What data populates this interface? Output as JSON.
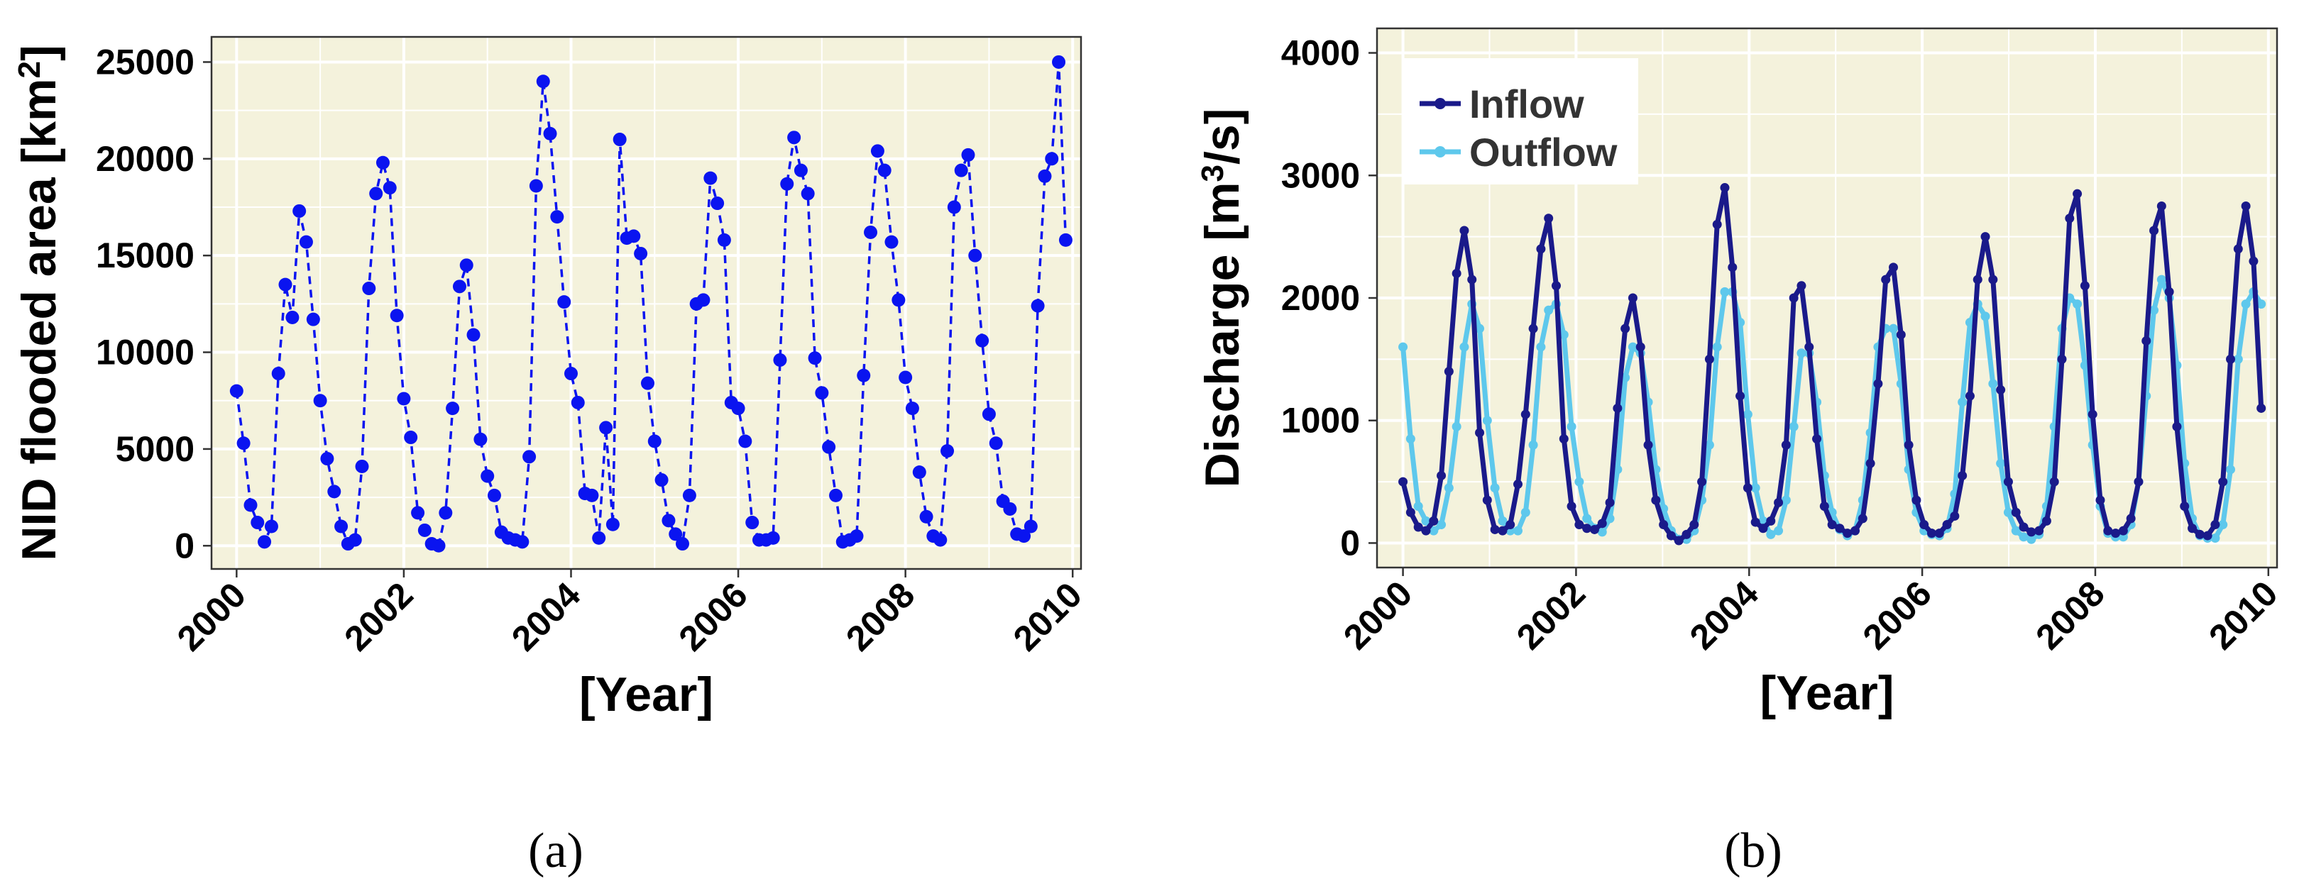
{
  "colors": {
    "panel_bg": "#f4f2dc",
    "grid": "#ffffff",
    "flooded_area": "#0a14f0",
    "inflow": "#1a1a8a",
    "outflow": "#5ec8ec"
  },
  "chart_data": [
    {
      "type": "line",
      "panel_label": "(a)",
      "xlabel": "[Year]",
      "ylabel": "NID flooded area [km²]",
      "xlim": [
        1999.7,
        2010.1
      ],
      "ylim": [
        -1200,
        26300
      ],
      "xticks": [
        2000,
        2002,
        2004,
        2006,
        2008,
        2010
      ],
      "yticks": [
        0,
        5000,
        10000,
        15000,
        20000,
        25000
      ],
      "grid": true,
      "legend": "none",
      "line_style": "dashed with dot markers",
      "series": [
        {
          "x": [
            2000.0,
            2000.083,
            2000.167,
            2000.25,
            2000.333,
            2000.417,
            2000.5,
            2000.583,
            2000.667,
            2000.75,
            2000.833,
            2000.917,
            2001.0,
            2001.083,
            2001.167,
            2001.25,
            2001.333,
            2001.417,
            2001.5,
            2001.583,
            2001.667,
            2001.75,
            2001.833,
            2001.917,
            2002.0,
            2002.083,
            2002.167,
            2002.25,
            2002.333,
            2002.417,
            2002.5,
            2002.583,
            2002.667,
            2002.75,
            2002.833,
            2002.917,
            2003.0,
            2003.083,
            2003.167,
            2003.25,
            2003.333,
            2003.417,
            2003.5,
            2003.583,
            2003.667,
            2003.75,
            2003.833,
            2003.917,
            2004.0,
            2004.083,
            2004.167,
            2004.25,
            2004.333,
            2004.417,
            2004.5,
            2004.583,
            2004.667,
            2004.75,
            2004.833,
            2004.917,
            2005.0,
            2005.083,
            2005.167,
            2005.25,
            2005.333,
            2005.417,
            2005.5,
            2005.583,
            2005.667,
            2005.75,
            2005.833,
            2005.917,
            2006.0,
            2006.083,
            2006.167,
            2006.25,
            2006.333,
            2006.417,
            2006.5,
            2006.583,
            2006.667,
            2006.75,
            2006.833,
            2006.917,
            2007.0,
            2007.083,
            2007.167,
            2007.25,
            2007.333,
            2007.417,
            2007.5,
            2007.583,
            2007.667,
            2007.75,
            2007.833,
            2007.917,
            2008.0,
            2008.083,
            2008.167,
            2008.25,
            2008.333,
            2008.417,
            2008.5,
            2008.583,
            2008.667,
            2008.75,
            2008.833,
            2008.917,
            2009.0,
            2009.083,
            2009.167,
            2009.25,
            2009.333,
            2009.417,
            2009.5,
            2009.583,
            2009.667,
            2009.75,
            2009.833,
            2009.917
          ],
          "values": [
            8000,
            5300,
            2100,
            1200,
            200,
            1000,
            8900,
            13500,
            11800,
            17300,
            15700,
            11700,
            7500,
            4500,
            2800,
            1000,
            100,
            300,
            4100,
            13300,
            18200,
            19800,
            18500,
            11900,
            7600,
            5600,
            1700,
            800,
            100,
            0,
            1700,
            7100,
            13400,
            14500,
            10900,
            5500,
            3600,
            2600,
            700,
            400,
            300,
            200,
            4600,
            18600,
            24000,
            21300,
            17000,
            12600,
            8900,
            7400,
            2700,
            2600,
            400,
            6100,
            1100,
            21000,
            15900,
            16000,
            15100,
            8400,
            5400,
            3400,
            1300,
            600,
            100,
            2600,
            12500,
            12700,
            19000,
            17700,
            15800,
            7400,
            7100,
            5400,
            1200,
            300,
            300,
            400,
            9600,
            18700,
            21100,
            19400,
            18200,
            9700,
            7900,
            5100,
            2600,
            200,
            300,
            500,
            8800,
            16200,
            20400,
            19400,
            15700,
            12700,
            8700,
            7100,
            3800,
            1500,
            500,
            300,
            4900,
            17500,
            19400,
            20200,
            15000,
            10600,
            6800,
            5300,
            2300,
            1900,
            600,
            500,
            1000,
            12400,
            19100,
            20000,
            25000,
            15800
          ]
        }
      ]
    },
    {
      "type": "line",
      "panel_label": "(b)",
      "xlabel": "[Year]",
      "ylabel": "Discharge [m³/s]",
      "xlim": [
        1999.7,
        2010.1
      ],
      "ylim": [
        -200,
        4200
      ],
      "xticks": [
        2000,
        2002,
        2004,
        2006,
        2008,
        2010
      ],
      "yticks": [
        0,
        1000,
        2000,
        3000,
        4000
      ],
      "grid": true,
      "legend": "top-left",
      "series": [
        {
          "name": "Inflow",
          "values": [
            500,
            250,
            130,
            100,
            180,
            550,
            1400,
            2200,
            2550,
            2150,
            900,
            350,
            110,
            100,
            150,
            480,
            1050,
            1750,
            2400,
            2650,
            2100,
            850,
            300,
            150,
            120,
            110,
            160,
            330,
            1100,
            1750,
            2000,
            1600,
            800,
            350,
            150,
            60,
            20,
            70,
            150,
            500,
            1500,
            2600,
            2900,
            2250,
            1200,
            450,
            170,
            120,
            180,
            330,
            800,
            2000,
            2100,
            1600,
            850,
            300,
            150,
            120,
            80,
            100,
            200,
            650,
            1300,
            2150,
            2250,
            1700,
            800,
            350,
            150,
            80,
            80,
            150,
            220,
            550,
            1200,
            2150,
            2500,
            2150,
            1250,
            500,
            250,
            130,
            90,
            100,
            180,
            500,
            1500,
            2650,
            2850,
            2100,
            1050,
            350,
            100,
            80,
            100,
            200,
            500,
            1650,
            2550,
            2750,
            2050,
            950,
            300,
            120,
            70,
            60,
            150,
            500,
            1500,
            2400,
            2750,
            2300,
            1100
          ]
        },
        {
          "name": "Outflow",
          "values": [
            1600,
            850,
            300,
            180,
            100,
            150,
            450,
            950,
            1600,
            1950,
            1750,
            1000,
            450,
            180,
            100,
            100,
            250,
            800,
            1600,
            1900,
            1950,
            1700,
            950,
            500,
            200,
            120,
            90,
            200,
            600,
            1350,
            1600,
            1550,
            1150,
            600,
            280,
            100,
            30,
            30,
            100,
            350,
            800,
            1600,
            2050,
            2050,
            1800,
            1050,
            450,
            180,
            70,
            100,
            350,
            950,
            1550,
            1550,
            1150,
            550,
            250,
            110,
            60,
            100,
            350,
            900,
            1600,
            1750,
            1750,
            1300,
            600,
            250,
            100,
            70,
            60,
            120,
            400,
            1150,
            1800,
            1950,
            1850,
            1300,
            650,
            250,
            100,
            50,
            30,
            70,
            300,
            950,
            1750,
            2000,
            1950,
            1450,
            800,
            300,
            80,
            50,
            50,
            150,
            500,
            1200,
            1900,
            2150,
            2000,
            1450,
            650,
            200,
            60,
            40,
            40,
            150,
            600,
            1500,
            1950,
            2050,
            1950
          ]
        }
      ]
    }
  ]
}
